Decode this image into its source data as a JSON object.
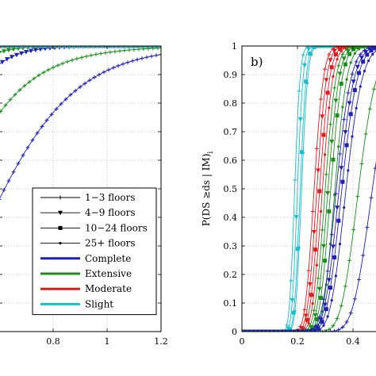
{
  "chart_data": [
    {
      "type": "line",
      "panel": "left",
      "xlim": [
        0.6,
        1.2
      ],
      "ylim": [
        0,
        1
      ],
      "xticks": [
        "0.8",
        "1",
        "1.2"
      ],
      "grid": "dotted",
      "legend": {
        "placement": "bottom-right",
        "entries": [
          {
            "label": "1−3 floors",
            "marker": "plus",
            "color": "#000000"
          },
          {
            "label": "4−9 floors",
            "marker": "triangle-down",
            "color": "#000000"
          },
          {
            "label": "10−24 floors",
            "marker": "square",
            "color": "#000000"
          },
          {
            "label": "25+ floors",
            "marker": "dot",
            "color": "#000000"
          },
          {
            "label": "Complete",
            "marker": "line",
            "color": "#1f1fb4"
          },
          {
            "label": "Extensive",
            "marker": "line",
            "color": "#1a8f1a"
          },
          {
            "label": "Moderate",
            "marker": "line",
            "color": "#e31a1c"
          },
          {
            "label": "Slight",
            "marker": "line",
            "color": "#17becf"
          }
        ]
      },
      "series": [
        {
          "damage": "Complete",
          "floors": "1-3",
          "color": "#1f1fb4",
          "marker": "plus",
          "mu": 0.62,
          "beta": 0.35
        },
        {
          "damage": "Extensive",
          "floors": "1-3",
          "color": "#1a8f1a",
          "marker": "plus",
          "mu": 0.45,
          "beta": 0.4
        },
        {
          "damage": "Complete",
          "floors": "4-9",
          "color": "#1f1fb4",
          "marker": "triangle-down",
          "mu": 0.38,
          "beta": 0.3
        },
        {
          "damage": "Extensive",
          "floors": "4-9",
          "color": "#1a8f1a",
          "marker": "triangle-down",
          "mu": 0.33,
          "beta": 0.3
        },
        {
          "damage": "Moderate",
          "floors": "all",
          "color": "#e31a1c",
          "marker": "square",
          "mu": 0.27,
          "beta": 0.25
        },
        {
          "damage": "Slight",
          "floors": "all",
          "color": "#17becf",
          "marker": "square",
          "mu": 0.2,
          "beta": 0.2
        }
      ]
    },
    {
      "type": "line",
      "panel": "right",
      "annotation": "b)",
      "ylabel": "P(DS ≥ds | IM)",
      "ylabel_subscript": "i",
      "xlim": [
        0,
        0.5
      ],
      "ylim": [
        0,
        1
      ],
      "xticks": [
        "0",
        "0.2",
        "0.4"
      ],
      "yticks": [
        "0",
        "0.1",
        "0.2",
        "0.3",
        "0.4",
        "0.5",
        "0.6",
        "0.7",
        "0.8",
        "0.9",
        "1"
      ],
      "grid": "dotted",
      "series": [
        {
          "damage": "Slight",
          "floors": "1-3",
          "color": "#17becf",
          "marker": "plus",
          "mu": 0.19,
          "beta": 0.08
        },
        {
          "damage": "Slight",
          "floors": "4-9",
          "color": "#17becf",
          "marker": "triangle-down",
          "mu": 0.2,
          "beta": 0.08
        },
        {
          "damage": "Slight",
          "floors": "10-24",
          "color": "#17becf",
          "marker": "square",
          "mu": 0.21,
          "beta": 0.08
        },
        {
          "damage": "Slight",
          "floors": "25+",
          "color": "#17becf",
          "marker": "dot",
          "mu": 0.215,
          "beta": 0.08
        },
        {
          "damage": "Moderate",
          "floors": "1-3",
          "color": "#e31a1c",
          "marker": "plus",
          "mu": 0.26,
          "beta": 0.1
        },
        {
          "damage": "Moderate",
          "floors": "4-9",
          "color": "#e31a1c",
          "marker": "triangle-down",
          "mu": 0.27,
          "beta": 0.1
        },
        {
          "damage": "Moderate",
          "floors": "10-24",
          "color": "#e31a1c",
          "marker": "square",
          "mu": 0.28,
          "beta": 0.1
        },
        {
          "damage": "Moderate",
          "floors": "25+",
          "color": "#e31a1c",
          "marker": "dot",
          "mu": 0.29,
          "beta": 0.1
        },
        {
          "damage": "Extensive",
          "floors": "1-3",
          "color": "#1a8f1a",
          "marker": "plus",
          "mu": 0.3,
          "beta": 0.1
        },
        {
          "damage": "Extensive",
          "floors": "4-9",
          "color": "#1a8f1a",
          "marker": "triangle-down",
          "mu": 0.31,
          "beta": 0.1
        },
        {
          "damage": "Extensive",
          "floors": "10-24",
          "color": "#1a8f1a",
          "marker": "square",
          "mu": 0.32,
          "beta": 0.1
        },
        {
          "damage": "Extensive",
          "floors": "25+",
          "color": "#1a8f1a",
          "marker": "dot",
          "mu": 0.335,
          "beta": 0.1
        },
        {
          "damage": "Complete",
          "floors": "1-3",
          "color": "#1f1fb4",
          "marker": "plus",
          "mu": 0.34,
          "beta": 0.12
        },
        {
          "damage": "Complete",
          "floors": "4-9",
          "color": "#1f1fb4",
          "marker": "triangle-down",
          "mu": 0.35,
          "beta": 0.12
        },
        {
          "damage": "Complete",
          "floors": "10-24",
          "color": "#1f1fb4",
          "marker": "square",
          "mu": 0.36,
          "beta": 0.12
        },
        {
          "damage": "Complete",
          "floors": "25+",
          "color": "#1f1fb4",
          "marker": "dot",
          "mu": 0.375,
          "beta": 0.12
        },
        {
          "damage": "Extensive",
          "floors": "1-3 (low)",
          "color": "#1a8f1a",
          "marker": "plus",
          "mu": 0.42,
          "beta": 0.12
        },
        {
          "damage": "Complete",
          "floors": "1-3 (low)",
          "color": "#1f1fb4",
          "marker": "plus",
          "mu": 0.47,
          "beta": 0.12
        }
      ]
    }
  ]
}
